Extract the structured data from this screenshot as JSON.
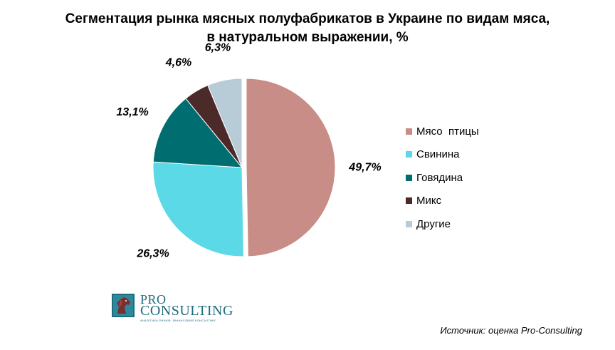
{
  "chart_data": {
    "type": "pie",
    "title": "Сегментация рынка мясных полуфабрикатов в Украине по видам мяса, в натуральном выражении, %",
    "title_lines": [
      "Сегментация рынка мясных полуфабрикатов в Украине по видам мяса,",
      "в натуральном выражении, %"
    ],
    "slices": [
      {
        "name": "Мясо  птицы",
        "value": 49.7,
        "label": "49,7%",
        "color": "#c88d86",
        "exploded": true
      },
      {
        "name": "Свинина",
        "value": 26.3,
        "label": "26,3%",
        "color": "#5bd9e6",
        "exploded": false
      },
      {
        "name": "Говядина",
        "value": 13.1,
        "label": "13,1%",
        "color": "#006d70",
        "exploded": false
      },
      {
        "name": "Микс",
        "value": 4.6,
        "label": "4,6%",
        "color": "#4d2a2a",
        "exploded": false
      },
      {
        "name": "Другие",
        "value": 6.3,
        "label": "6,3%",
        "color": "#b8ccd8",
        "exploded": false
      }
    ],
    "start_angle": "12 o'clock",
    "direction": "clockwise",
    "legend_position": "right"
  },
  "logo": {
    "text_top": "PRO",
    "text_main": "CONSULTING",
    "tagline": "АНАЛІТИКА РИНКІВ. ФІНАНСОВИЙ КОНСАЛТИНГ"
  },
  "source": "Источник: оценка Pro-Consulting"
}
